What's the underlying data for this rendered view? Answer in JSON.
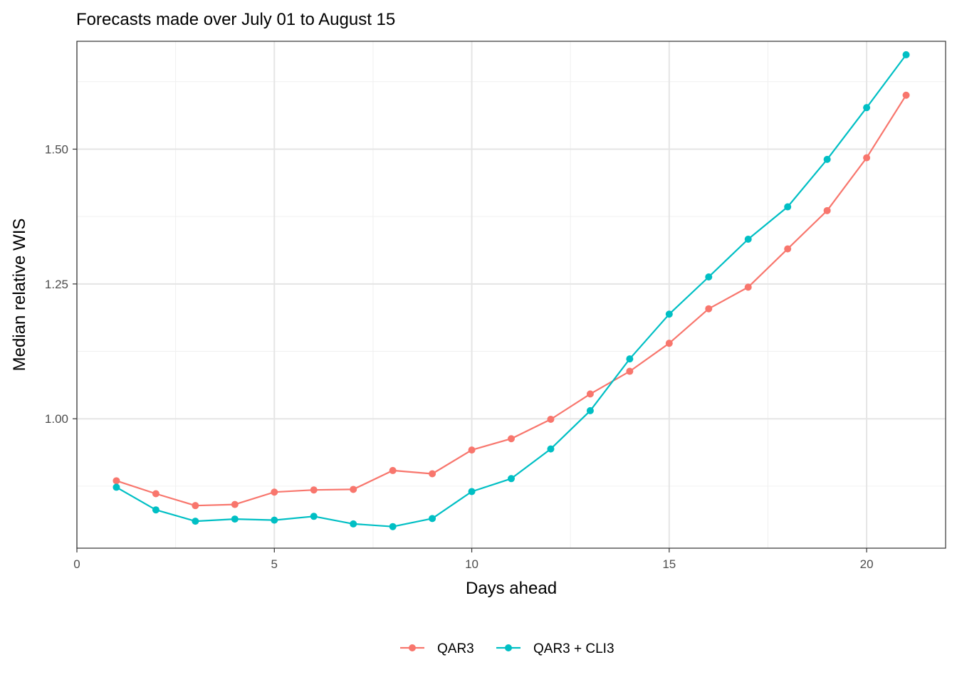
{
  "chart_data": {
    "type": "line",
    "title": "Forecasts made over July 01 to August 15",
    "xlabel": "Days ahead",
    "ylabel": "Median relative WIS",
    "xlim": [
      0,
      22
    ],
    "ylim": [
      0.76,
      1.7
    ],
    "x_ticks": [
      0,
      5,
      10,
      15,
      20
    ],
    "x_tick_labels": [
      "0",
      "5",
      "10",
      "15",
      "20"
    ],
    "y_ticks": [
      1.0,
      1.25,
      1.5
    ],
    "y_tick_labels": [
      "1.00",
      "1.25",
      "1.50"
    ],
    "grid": true,
    "legend_position": "bottom",
    "x": [
      1,
      2,
      3,
      4,
      5,
      6,
      7,
      8,
      9,
      10,
      11,
      12,
      13,
      14,
      15,
      16,
      17,
      18,
      19,
      20,
      21
    ],
    "series": [
      {
        "name": "QAR3",
        "color": "#F8766D",
        "values": [
          0.885,
          0.861,
          0.839,
          0.841,
          0.864,
          0.868,
          0.869,
          0.904,
          0.898,
          0.942,
          0.963,
          0.999,
          1.046,
          1.088,
          1.14,
          1.204,
          1.244,
          1.315,
          1.386,
          1.484,
          1.6
        ]
      },
      {
        "name": "QAR3 + CLI3",
        "color": "#00BFC4",
        "values": [
          0.873,
          0.831,
          0.81,
          0.814,
          0.812,
          0.819,
          0.805,
          0.8,
          0.815,
          0.865,
          0.889,
          0.944,
          1.015,
          1.111,
          1.194,
          1.263,
          1.333,
          1.393,
          1.481,
          1.577,
          1.675
        ]
      }
    ]
  }
}
